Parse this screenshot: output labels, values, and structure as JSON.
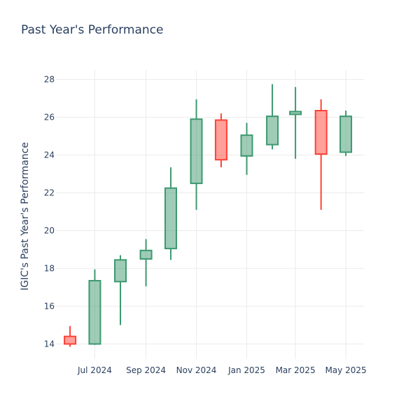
{
  "chart_data": {
    "type": "candlestick",
    "title": "Past Year's Performance",
    "xlabel": "",
    "ylabel": "IGIC's Past Year's Performance",
    "ylim": [
      13.2,
      28.5
    ],
    "yticks": [
      14,
      16,
      18,
      20,
      22,
      24,
      26,
      28
    ],
    "xlim": [
      "2024-05-15",
      "2025-05-23"
    ],
    "xticks": [
      {
        "date": "2024-07-01",
        "label": "Jul 2024"
      },
      {
        "date": "2024-09-01",
        "label": "Sep 2024"
      },
      {
        "date": "2024-11-01",
        "label": "Nov 2024"
      },
      {
        "date": "2025-01-01",
        "label": "Jan 2025"
      },
      {
        "date": "2025-03-01",
        "label": "Mar 2025"
      },
      {
        "date": "2025-05-01",
        "label": "May 2025"
      }
    ],
    "increasing_color": "#3d9970",
    "decreasing_color": "#ff4136",
    "candles": [
      {
        "date": "2024-06-01",
        "open": 14.4,
        "high": 14.95,
        "low": 13.85,
        "close": 14.0
      },
      {
        "date": "2024-07-01",
        "open": 14.0,
        "high": 17.95,
        "low": 13.95,
        "close": 17.35
      },
      {
        "date": "2024-08-01",
        "open": 17.3,
        "high": 18.7,
        "low": 15.0,
        "close": 18.45
      },
      {
        "date": "2024-09-01",
        "open": 18.5,
        "high": 19.55,
        "low": 17.05,
        "close": 18.95
      },
      {
        "date": "2024-10-01",
        "open": 19.05,
        "high": 23.35,
        "low": 18.45,
        "close": 22.25
      },
      {
        "date": "2024-11-01",
        "open": 22.5,
        "high": 26.95,
        "low": 21.1,
        "close": 25.9
      },
      {
        "date": "2024-12-01",
        "open": 25.85,
        "high": 26.2,
        "low": 23.35,
        "close": 23.75
      },
      {
        "date": "2025-01-01",
        "open": 23.95,
        "high": 25.7,
        "low": 22.95,
        "close": 25.05
      },
      {
        "date": "2025-02-01",
        "open": 24.55,
        "high": 27.75,
        "low": 24.3,
        "close": 26.05
      },
      {
        "date": "2025-03-01",
        "open": 26.15,
        "high": 27.6,
        "low": 23.8,
        "close": 26.3
      },
      {
        "date": "2025-04-01",
        "open": 26.35,
        "high": 26.95,
        "low": 21.1,
        "close": 24.05
      },
      {
        "date": "2025-05-01",
        "open": 24.15,
        "high": 26.35,
        "low": 23.95,
        "close": 26.05
      }
    ]
  }
}
